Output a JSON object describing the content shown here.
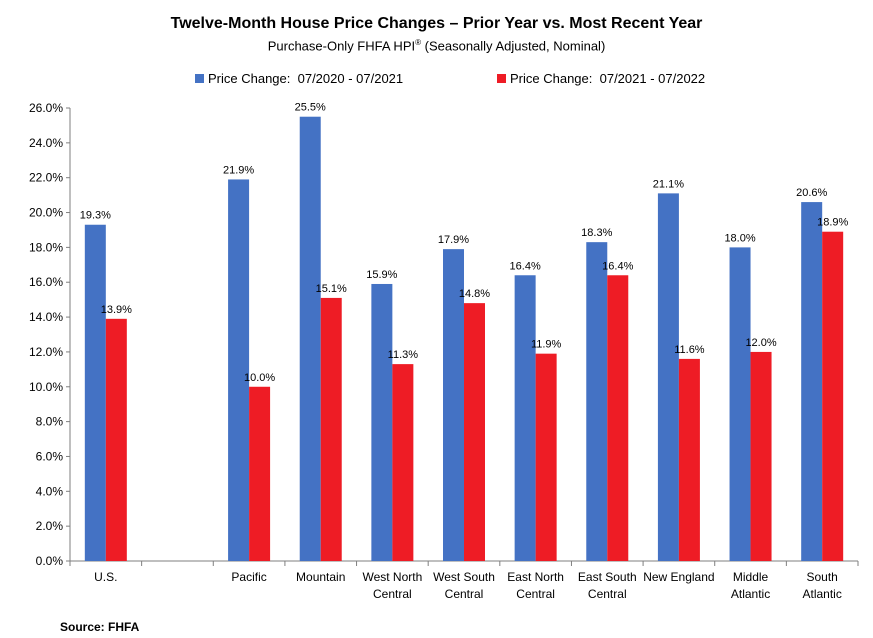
{
  "title": "Twelve-Month House Price Changes – Prior Year vs. Most Recent Year",
  "subtitle": "Purchase-Only FHFA HPI",
  "subtitle_sup": "®",
  "subtitle_tail": " (Seasonally Adjusted, Nominal)",
  "source": "Source: FHFA",
  "colors": {
    "series1": "#4472C4",
    "series2": "#EE1C25"
  },
  "chart_data": {
    "type": "bar",
    "title": "Twelve-Month House Price Changes – Prior Year vs. Most Recent Year",
    "xlabel": "",
    "ylabel": "",
    "ylim": [
      0,
      26
    ],
    "yticks": [
      "0.0%",
      "2.0%",
      "4.0%",
      "6.0%",
      "8.0%",
      "10.0%",
      "12.0%",
      "14.0%",
      "16.0%",
      "18.0%",
      "20.0%",
      "22.0%",
      "24.0%",
      "26.0%"
    ],
    "grid": false,
    "legend_position": "top",
    "categories": [
      [
        "U.S."
      ],
      [
        ""
      ],
      [
        "Pacific"
      ],
      [
        "Mountain"
      ],
      [
        "West North",
        "Central"
      ],
      [
        "West South",
        "Central"
      ],
      [
        "East North",
        "Central"
      ],
      [
        "East South",
        "Central"
      ],
      [
        "New England"
      ],
      [
        "Middle",
        "Atlantic"
      ],
      [
        "South",
        "Atlantic"
      ]
    ],
    "series": [
      {
        "name": "Price Change:  07/2020 - 07/2021",
        "values": [
          19.3,
          null,
          21.9,
          25.5,
          15.9,
          17.9,
          16.4,
          18.3,
          21.1,
          18.0,
          20.6
        ],
        "labels": [
          "19.3%",
          "",
          "21.9%",
          "25.5%",
          "15.9%",
          "17.9%",
          "16.4%",
          "18.3%",
          "21.1%",
          "18.0%",
          "20.6%"
        ]
      },
      {
        "name": "Price Change:  07/2021 - 07/2022",
        "values": [
          13.9,
          null,
          10.0,
          15.1,
          11.3,
          14.8,
          11.9,
          16.4,
          11.6,
          12.0,
          18.9
        ],
        "labels": [
          "13.9%",
          "",
          "10.0%",
          "15.1%",
          "11.3%",
          "14.8%",
          "11.9%",
          "16.4%",
          "11.6%",
          "12.0%",
          "18.9%"
        ]
      }
    ]
  }
}
